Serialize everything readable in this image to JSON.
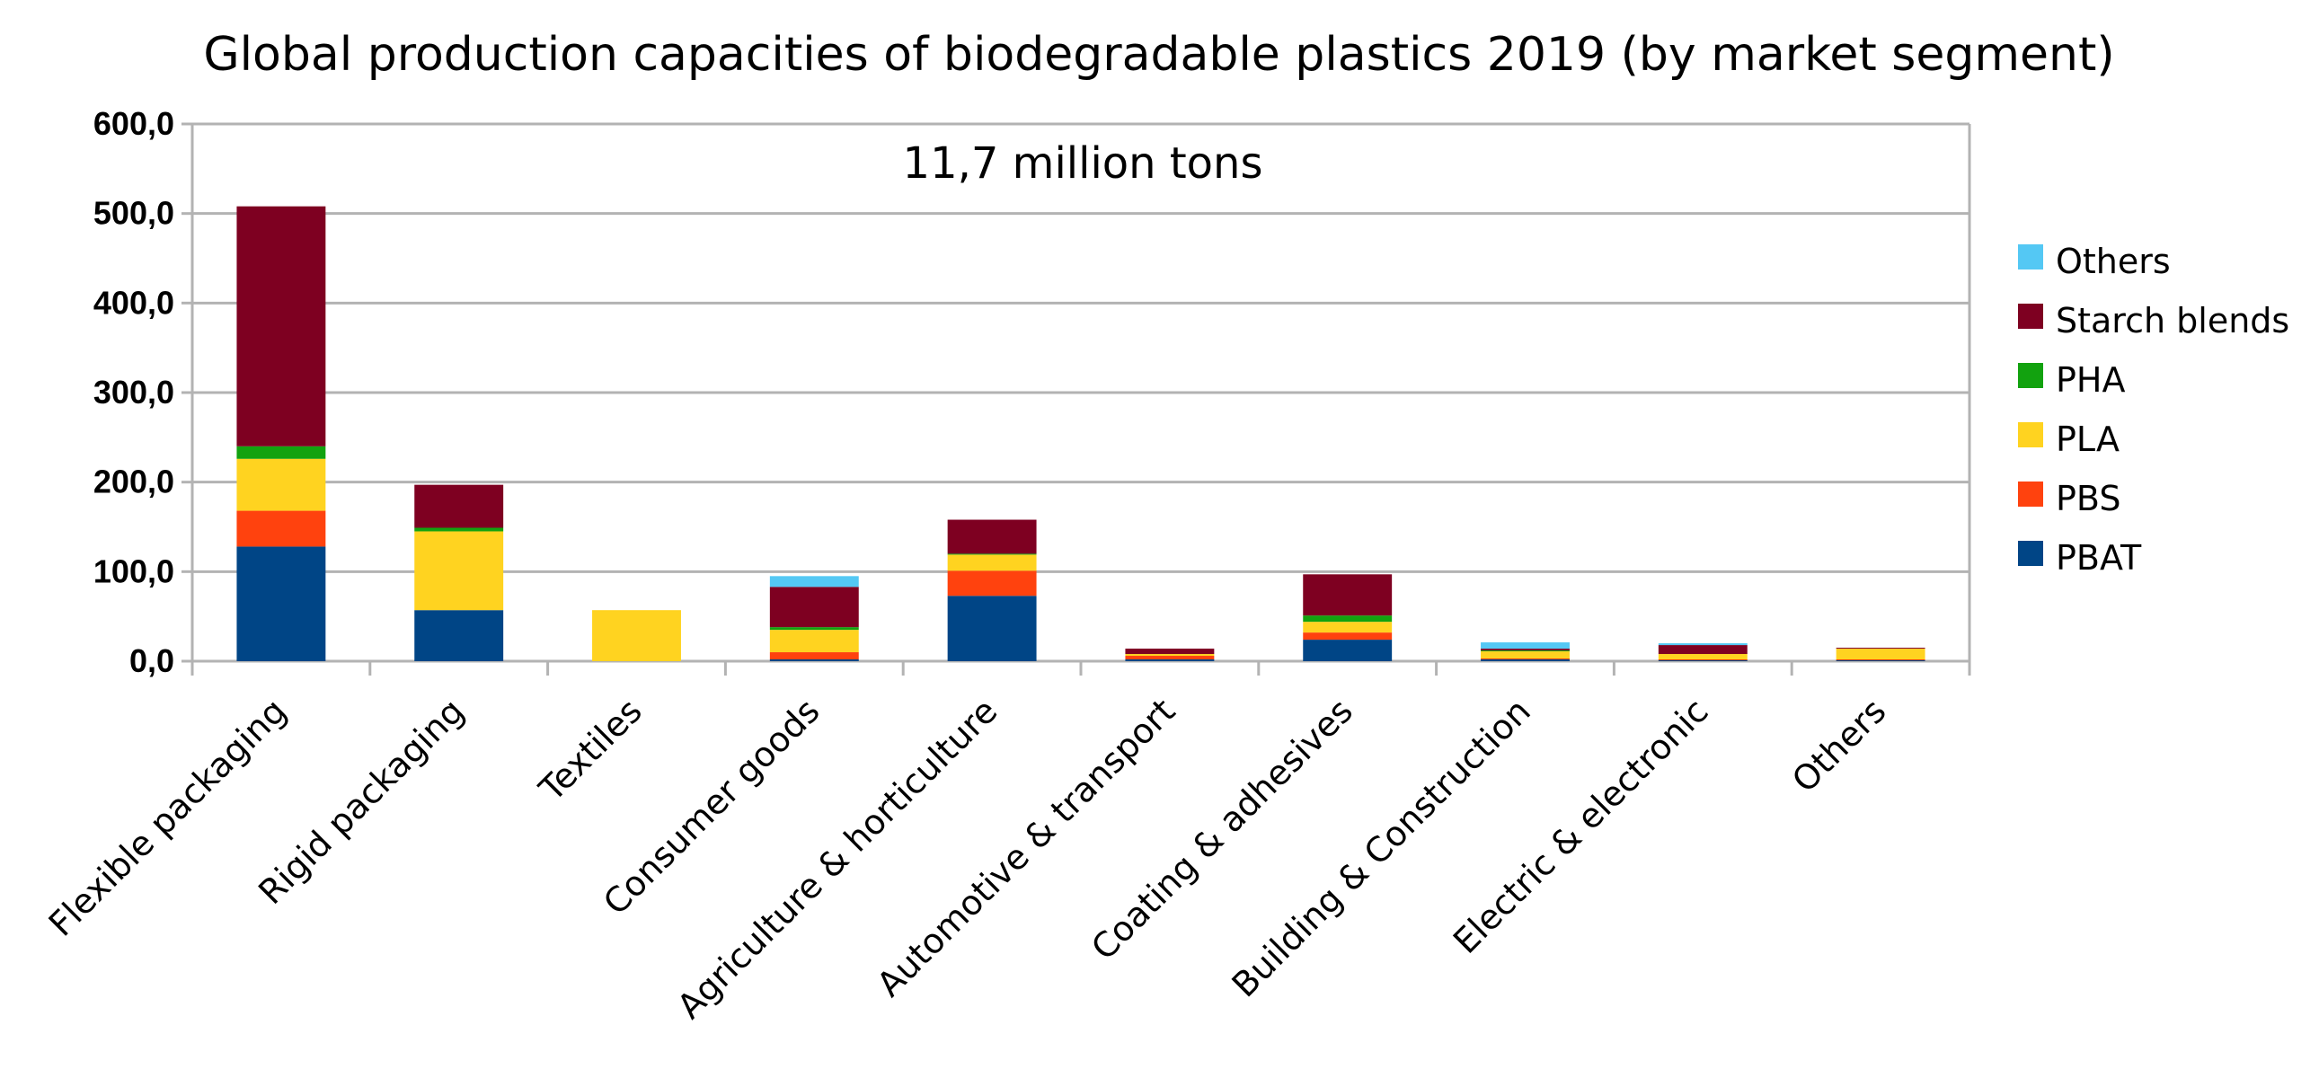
{
  "chart_data": {
    "type": "bar",
    "stacked": true,
    "title": "Global production capacities of biodegradable plastics 2019 (by market segment)",
    "annotation": "11,7 million tons",
    "xlabel": "",
    "ylabel": "",
    "ylim": [
      0,
      600
    ],
    "yticks": [
      0,
      100,
      200,
      300,
      400,
      500,
      600
    ],
    "ytick_labels": [
      "0,0",
      "100,0",
      "200,0",
      "300,0",
      "400,0",
      "500,0",
      "600,0"
    ],
    "grid": true,
    "legend_position": "right",
    "categories": [
      "Flexible packaging",
      "Rigid packaging",
      "Textiles",
      "Consumer goods",
      "Agriculture & horticulture",
      "Automotive & transport",
      "Coating & adhesives",
      "Building & Construction",
      "Electric & electronic",
      "Others"
    ],
    "series": [
      {
        "name": "PBAT",
        "color": "#004586",
        "values": [
          128,
          57,
          0,
          2,
          73,
          2,
          24,
          2,
          1,
          1
        ]
      },
      {
        "name": "PBS",
        "color": "#ff420e",
        "values": [
          40,
          0,
          0,
          8,
          28,
          4,
          8,
          1,
          1,
          1
        ]
      },
      {
        "name": "PLA",
        "color": "#ffd320",
        "values": [
          58,
          88,
          57,
          25,
          18,
          2,
          12,
          8,
          6,
          12
        ]
      },
      {
        "name": "PHA",
        "color": "#12a20f",
        "values": [
          14,
          4,
          0,
          3,
          1,
          0,
          7,
          1,
          0,
          0
        ]
      },
      {
        "name": "Starch blends",
        "color": "#7e0021",
        "values": [
          268,
          48,
          0,
          45,
          38,
          6,
          46,
          2,
          10,
          1
        ]
      },
      {
        "name": "Others",
        "color": "#54c8f4",
        "values": [
          0,
          0,
          0,
          12,
          0,
          0,
          0,
          7,
          2,
          0
        ]
      }
    ]
  }
}
